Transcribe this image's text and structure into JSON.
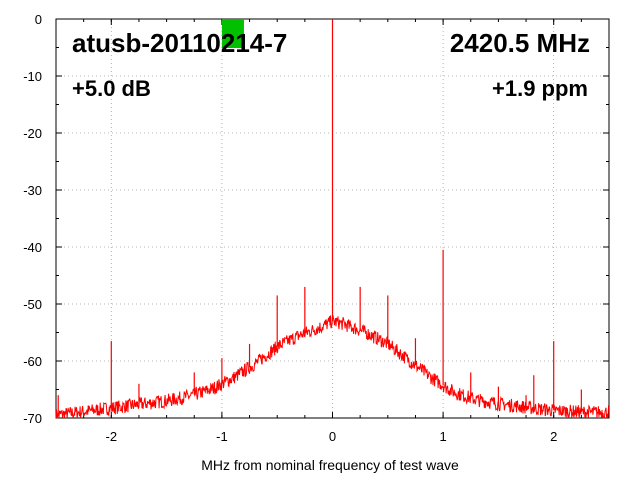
{
  "chart_data": {
    "type": "line",
    "title": "atusb-20110214-7",
    "frequency_label": "2420.5 MHz",
    "gain_label": "+5.0 dB",
    "offset_label": "+1.9 ppm",
    "xlabel": "MHz from nominal frequency of test wave",
    "ylabel": "",
    "xlim": [
      -2.5,
      2.5
    ],
    "ylim": [
      -70,
      0
    ],
    "x_ticks": [
      -2,
      -1,
      0,
      1,
      2
    ],
    "x_tick_labels": [
      "-2",
      "-1",
      "0",
      "1",
      "2"
    ],
    "y_ticks": [
      0,
      -10,
      -20,
      -30,
      -40,
      -50,
      -60,
      -70
    ],
    "y_tick_labels": [
      "0",
      "-10",
      "-20",
      "-30",
      "-40",
      "-50",
      "-60",
      "-70"
    ],
    "grid": true,
    "series_color": "#ff0000",
    "marker_color": "#00c000",
    "marker_x": -0.9,
    "series": [
      {
        "name": "",
        "noise_floor": [
          [
            -2.5,
            -69.5
          ],
          [
            -2.3,
            -69.0
          ],
          [
            -2.1,
            -68.5
          ],
          [
            -1.9,
            -68.0
          ],
          [
            -1.7,
            -67.5
          ],
          [
            -1.5,
            -67.0
          ],
          [
            -1.3,
            -66.2
          ],
          [
            -1.1,
            -65.0
          ],
          [
            -0.9,
            -63.0
          ],
          [
            -0.7,
            -60.5
          ],
          [
            -0.5,
            -57.5
          ],
          [
            -0.3,
            -55.5
          ],
          [
            -0.1,
            -54.0
          ],
          [
            0.0,
            -53.0
          ],
          [
            0.1,
            -53.5
          ],
          [
            0.3,
            -55.0
          ],
          [
            0.5,
            -57.0
          ],
          [
            0.7,
            -60.0
          ],
          [
            0.9,
            -63.0
          ],
          [
            1.1,
            -65.5
          ],
          [
            1.3,
            -66.8
          ],
          [
            1.5,
            -67.5
          ],
          [
            1.7,
            -68.0
          ],
          [
            1.9,
            -68.5
          ],
          [
            2.1,
            -68.8
          ],
          [
            2.3,
            -69.0
          ],
          [
            2.5,
            -69.0
          ]
        ],
        "spurs": [
          [
            -2.48,
            -66.0
          ],
          [
            -2.0,
            -56.5
          ],
          [
            -1.75,
            -64.0
          ],
          [
            -1.25,
            -62.0
          ],
          [
            -1.0,
            -59.5
          ],
          [
            -0.75,
            -57.0
          ],
          [
            -0.5,
            -48.5
          ],
          [
            -0.25,
            -47.0
          ],
          [
            0.0,
            0.0
          ],
          [
            0.25,
            -47.0
          ],
          [
            0.5,
            -48.5
          ],
          [
            0.75,
            -56.0
          ],
          [
            1.0,
            -40.5
          ],
          [
            1.25,
            -62.0
          ],
          [
            1.5,
            -64.5
          ],
          [
            1.75,
            -66.0
          ],
          [
            1.82,
            -62.5
          ],
          [
            2.0,
            -56.5
          ],
          [
            2.25,
            -65.0
          ]
        ]
      }
    ]
  }
}
